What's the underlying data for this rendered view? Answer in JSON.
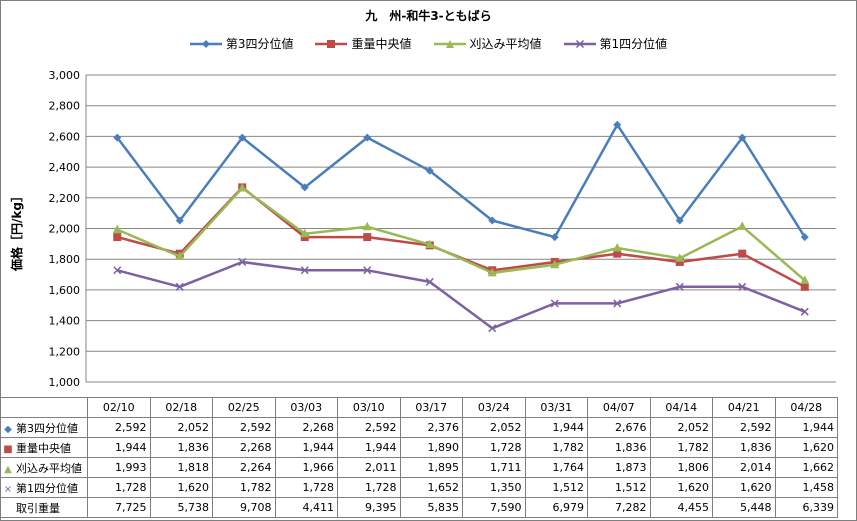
{
  "title": "九　州-和牛3-ともばら",
  "chart_data": {
    "type": "line",
    "title": "九　州-和牛3-ともばら",
    "ylabel": "価格［円/kg］",
    "xlabel": "",
    "ylim": [
      1000,
      3000
    ],
    "yticks": [
      1000,
      1200,
      1400,
      1600,
      1800,
      2000,
      2200,
      2400,
      2600,
      2800,
      3000
    ],
    "ytick_labels": [
      "1,000",
      "1,200",
      "1,400",
      "1,600",
      "1,800",
      "2,000",
      "2,200",
      "2,400",
      "2,600",
      "2,800",
      "3,000"
    ],
    "grid": true,
    "legend_position": "top",
    "categories": [
      "02/10",
      "02/18",
      "02/25",
      "03/03",
      "03/10",
      "03/17",
      "03/24",
      "03/31",
      "04/07",
      "04/14",
      "04/21",
      "04/28"
    ],
    "series": [
      {
        "name": "第3四分位値",
        "color": "#4a7ebb",
        "marker": "diamond",
        "values": [
          2592,
          2052,
          2592,
          2268,
          2592,
          2376,
          2052,
          1944,
          2676,
          2052,
          2592,
          1944
        ]
      },
      {
        "name": "重量中央値",
        "color": "#be4b48",
        "marker": "square",
        "values": [
          1944,
          1836,
          2268,
          1944,
          1944,
          1890,
          1728,
          1782,
          1836,
          1782,
          1836,
          1620
        ]
      },
      {
        "name": "刈込み平均値",
        "color": "#98b954",
        "marker": "triangle",
        "values": [
          1993,
          1818,
          2264,
          1966,
          2011,
          1895,
          1711,
          1764,
          1873,
          1806,
          2014,
          1662
        ]
      },
      {
        "name": "第1四分位値",
        "color": "#7d60a0",
        "marker": "x",
        "values": [
          1728,
          1620,
          1782,
          1728,
          1728,
          1652,
          1350,
          1512,
          1512,
          1620,
          1620,
          1458
        ]
      }
    ],
    "table": {
      "rows": [
        {
          "label": "第3四分位値",
          "values": [
            "2,592",
            "2,052",
            "2,592",
            "2,268",
            "2,592",
            "2,376",
            "2,052",
            "1,944",
            "2,676",
            "2,052",
            "2,592",
            "1,944"
          ]
        },
        {
          "label": "重量中央値",
          "values": [
            "1,944",
            "1,836",
            "2,268",
            "1,944",
            "1,944",
            "1,890",
            "1,728",
            "1,782",
            "1,836",
            "1,782",
            "1,836",
            "1,620"
          ]
        },
        {
          "label": "刈込み平均値",
          "values": [
            "1,993",
            "1,818",
            "2,264",
            "1,966",
            "2,011",
            "1,895",
            "1,711",
            "1,764",
            "1,873",
            "1,806",
            "2,014",
            "1,662"
          ]
        },
        {
          "label": "第1四分位値",
          "values": [
            "1,728",
            "1,620",
            "1,782",
            "1,728",
            "1,728",
            "1,652",
            "1,350",
            "1,512",
            "1,512",
            "1,620",
            "1,620",
            "1,458"
          ]
        },
        {
          "label": "取引重量",
          "values": [
            "7,725",
            "5,738",
            "9,708",
            "4,411",
            "9,395",
            "5,835",
            "7,590",
            "6,979",
            "7,282",
            "4,455",
            "5,448",
            "6,339"
          ]
        }
      ]
    }
  }
}
